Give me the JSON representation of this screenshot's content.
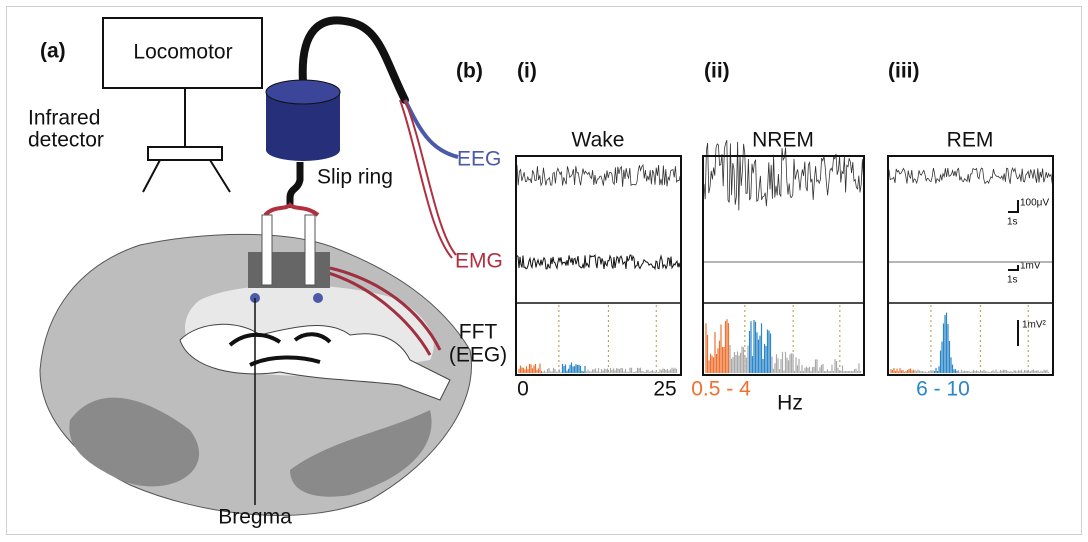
{
  "panel_a": {
    "label": "(a)",
    "locomotor": "Locomotor",
    "detector_label": [
      "Infrared",
      "detector"
    ],
    "slip_ring": "Slip ring",
    "eeg": "EEG",
    "emg": "EMG",
    "bregma": "Bregma"
  },
  "panel_b": {
    "label": "(b)",
    "columns": [
      {
        "numeral": "(i)",
        "title": "Wake"
      },
      {
        "numeral": "(ii)",
        "title": "NREM"
      },
      {
        "numeral": "(iii)",
        "title": "REM"
      }
    ],
    "fft_label": [
      "FFT",
      "(EEG)"
    ],
    "scale_bars": {
      "eeg_amplitude": "100μV",
      "eeg_time": "1s",
      "emg_amplitude": "1mV",
      "emg_time": "1s",
      "fft_power": "1mV²"
    },
    "x_axis": {
      "start": "0",
      "end": "25",
      "unit": "Hz"
    },
    "bands": {
      "delta": "0.5 - 4",
      "theta": "6 - 10"
    }
  }
}
